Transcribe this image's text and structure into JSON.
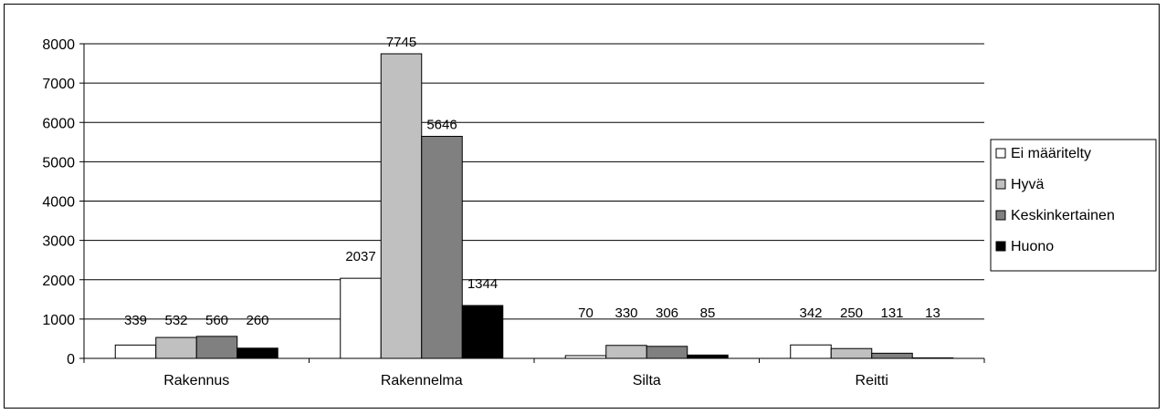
{
  "chart_data": {
    "type": "bar",
    "title": "",
    "xlabel": "",
    "ylabel": "",
    "categories": [
      "Rakennus",
      "Rakennelma",
      "Silta",
      "Reitti"
    ],
    "series": [
      {
        "name": "Ei määritelty",
        "color": "#ffffff",
        "values": [
          339,
          2037,
          70,
          342
        ]
      },
      {
        "name": "Hyvä",
        "color": "#c0c0c0",
        "values": [
          532,
          7745,
          330,
          250
        ]
      },
      {
        "name": "Keskinkertainen",
        "color": "#808080",
        "values": [
          560,
          5646,
          306,
          131
        ]
      },
      {
        "name": "Huono",
        "color": "#000000",
        "values": [
          260,
          1344,
          85,
          13
        ]
      }
    ],
    "ylim": [
      0,
      8000
    ],
    "yticks": [
      0,
      1000,
      2000,
      3000,
      4000,
      5000,
      6000,
      7000,
      8000
    ],
    "grid": true,
    "legend_position": "right",
    "data_labels": true
  }
}
